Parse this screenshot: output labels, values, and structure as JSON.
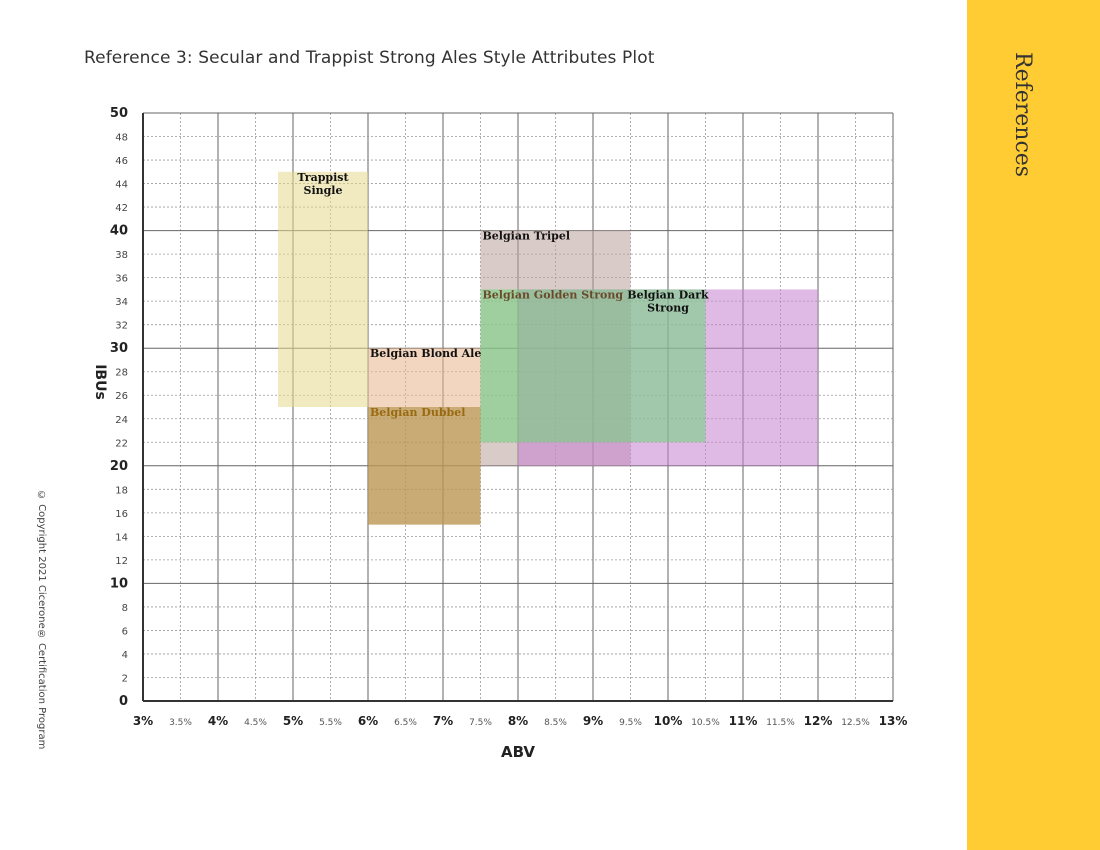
{
  "page": {
    "title": "Reference 3: Secular and Trappist Strong Ales Style Attributes Plot",
    "side_label": "References",
    "copyright": "© Copyright 2021 Cicerone® Certification Program",
    "accent_color": "#ffcc33"
  },
  "chart_data": {
    "type": "range-box",
    "title": "Reference 3: Secular and Trappist Strong Ales Style Attributes Plot",
    "xlabel": "ABV",
    "ylabel": "IBUs",
    "xlim": [
      3,
      13
    ],
    "ylim": [
      0,
      50
    ],
    "grid": true,
    "x_ticks": [
      "3%",
      "3.5%",
      "4%",
      "4.5%",
      "5%",
      "5.5%",
      "6%",
      "6.5%",
      "7%",
      "7.5%",
      "8%",
      "8.5%",
      "9%",
      "9.5%",
      "10%",
      "10.5%",
      "11%",
      "11.5%",
      "12%",
      "12.5%",
      "13%"
    ],
    "y_ticks": [
      "0",
      "2",
      "4",
      "6",
      "8",
      "10",
      "12",
      "14",
      "16",
      "18",
      "20",
      "22",
      "24",
      "26",
      "28",
      "30",
      "32",
      "34",
      "36",
      "38",
      "40",
      "42",
      "44",
      "46",
      "48",
      "50"
    ],
    "series": [
      {
        "name": "Trappist Single",
        "label_lines": [
          "Trappist",
          "Single"
        ],
        "abv": [
          4.8,
          6.0
        ],
        "ibu": [
          25,
          45
        ],
        "color": "#e6d98c",
        "label_color": "#111111"
      },
      {
        "name": "Belgian Blond Ale",
        "label_lines": [
          "Belgian Blond Ale"
        ],
        "abv": [
          6.0,
          7.5
        ],
        "ibu": [
          15,
          30
        ],
        "color": "#e8b48a",
        "label_color": "#111111"
      },
      {
        "name": "Belgian Dubbel",
        "label_lines": [
          "Belgian Dubbel"
        ],
        "abv": [
          6.0,
          7.5
        ],
        "ibu": [
          15,
          25
        ],
        "color": "#a8883a",
        "label_color": "#9a6a10"
      },
      {
        "name": "Belgian Tripel",
        "label_lines": [
          "Belgian Tripel"
        ],
        "abv": [
          7.5,
          9.5
        ],
        "ibu": [
          20,
          40
        ],
        "color": "#b9a09a",
        "label_color": "#111111"
      },
      {
        "name": "Belgian Dark Strong",
        "label_lines": [
          "Belgian Dark",
          "Strong"
        ],
        "abv": [
          8.0,
          12.0
        ],
        "ibu": [
          20,
          35
        ],
        "color": "#c582cf",
        "label_color": "#111111"
      },
      {
        "name": "Belgian Golden Strong",
        "label_lines": [
          "Belgian Golden Strong"
        ],
        "abv": [
          7.5,
          10.5
        ],
        "ibu": [
          22,
          35
        ],
        "color": "#70d47c",
        "label_color": "#6a4a2a"
      }
    ]
  }
}
